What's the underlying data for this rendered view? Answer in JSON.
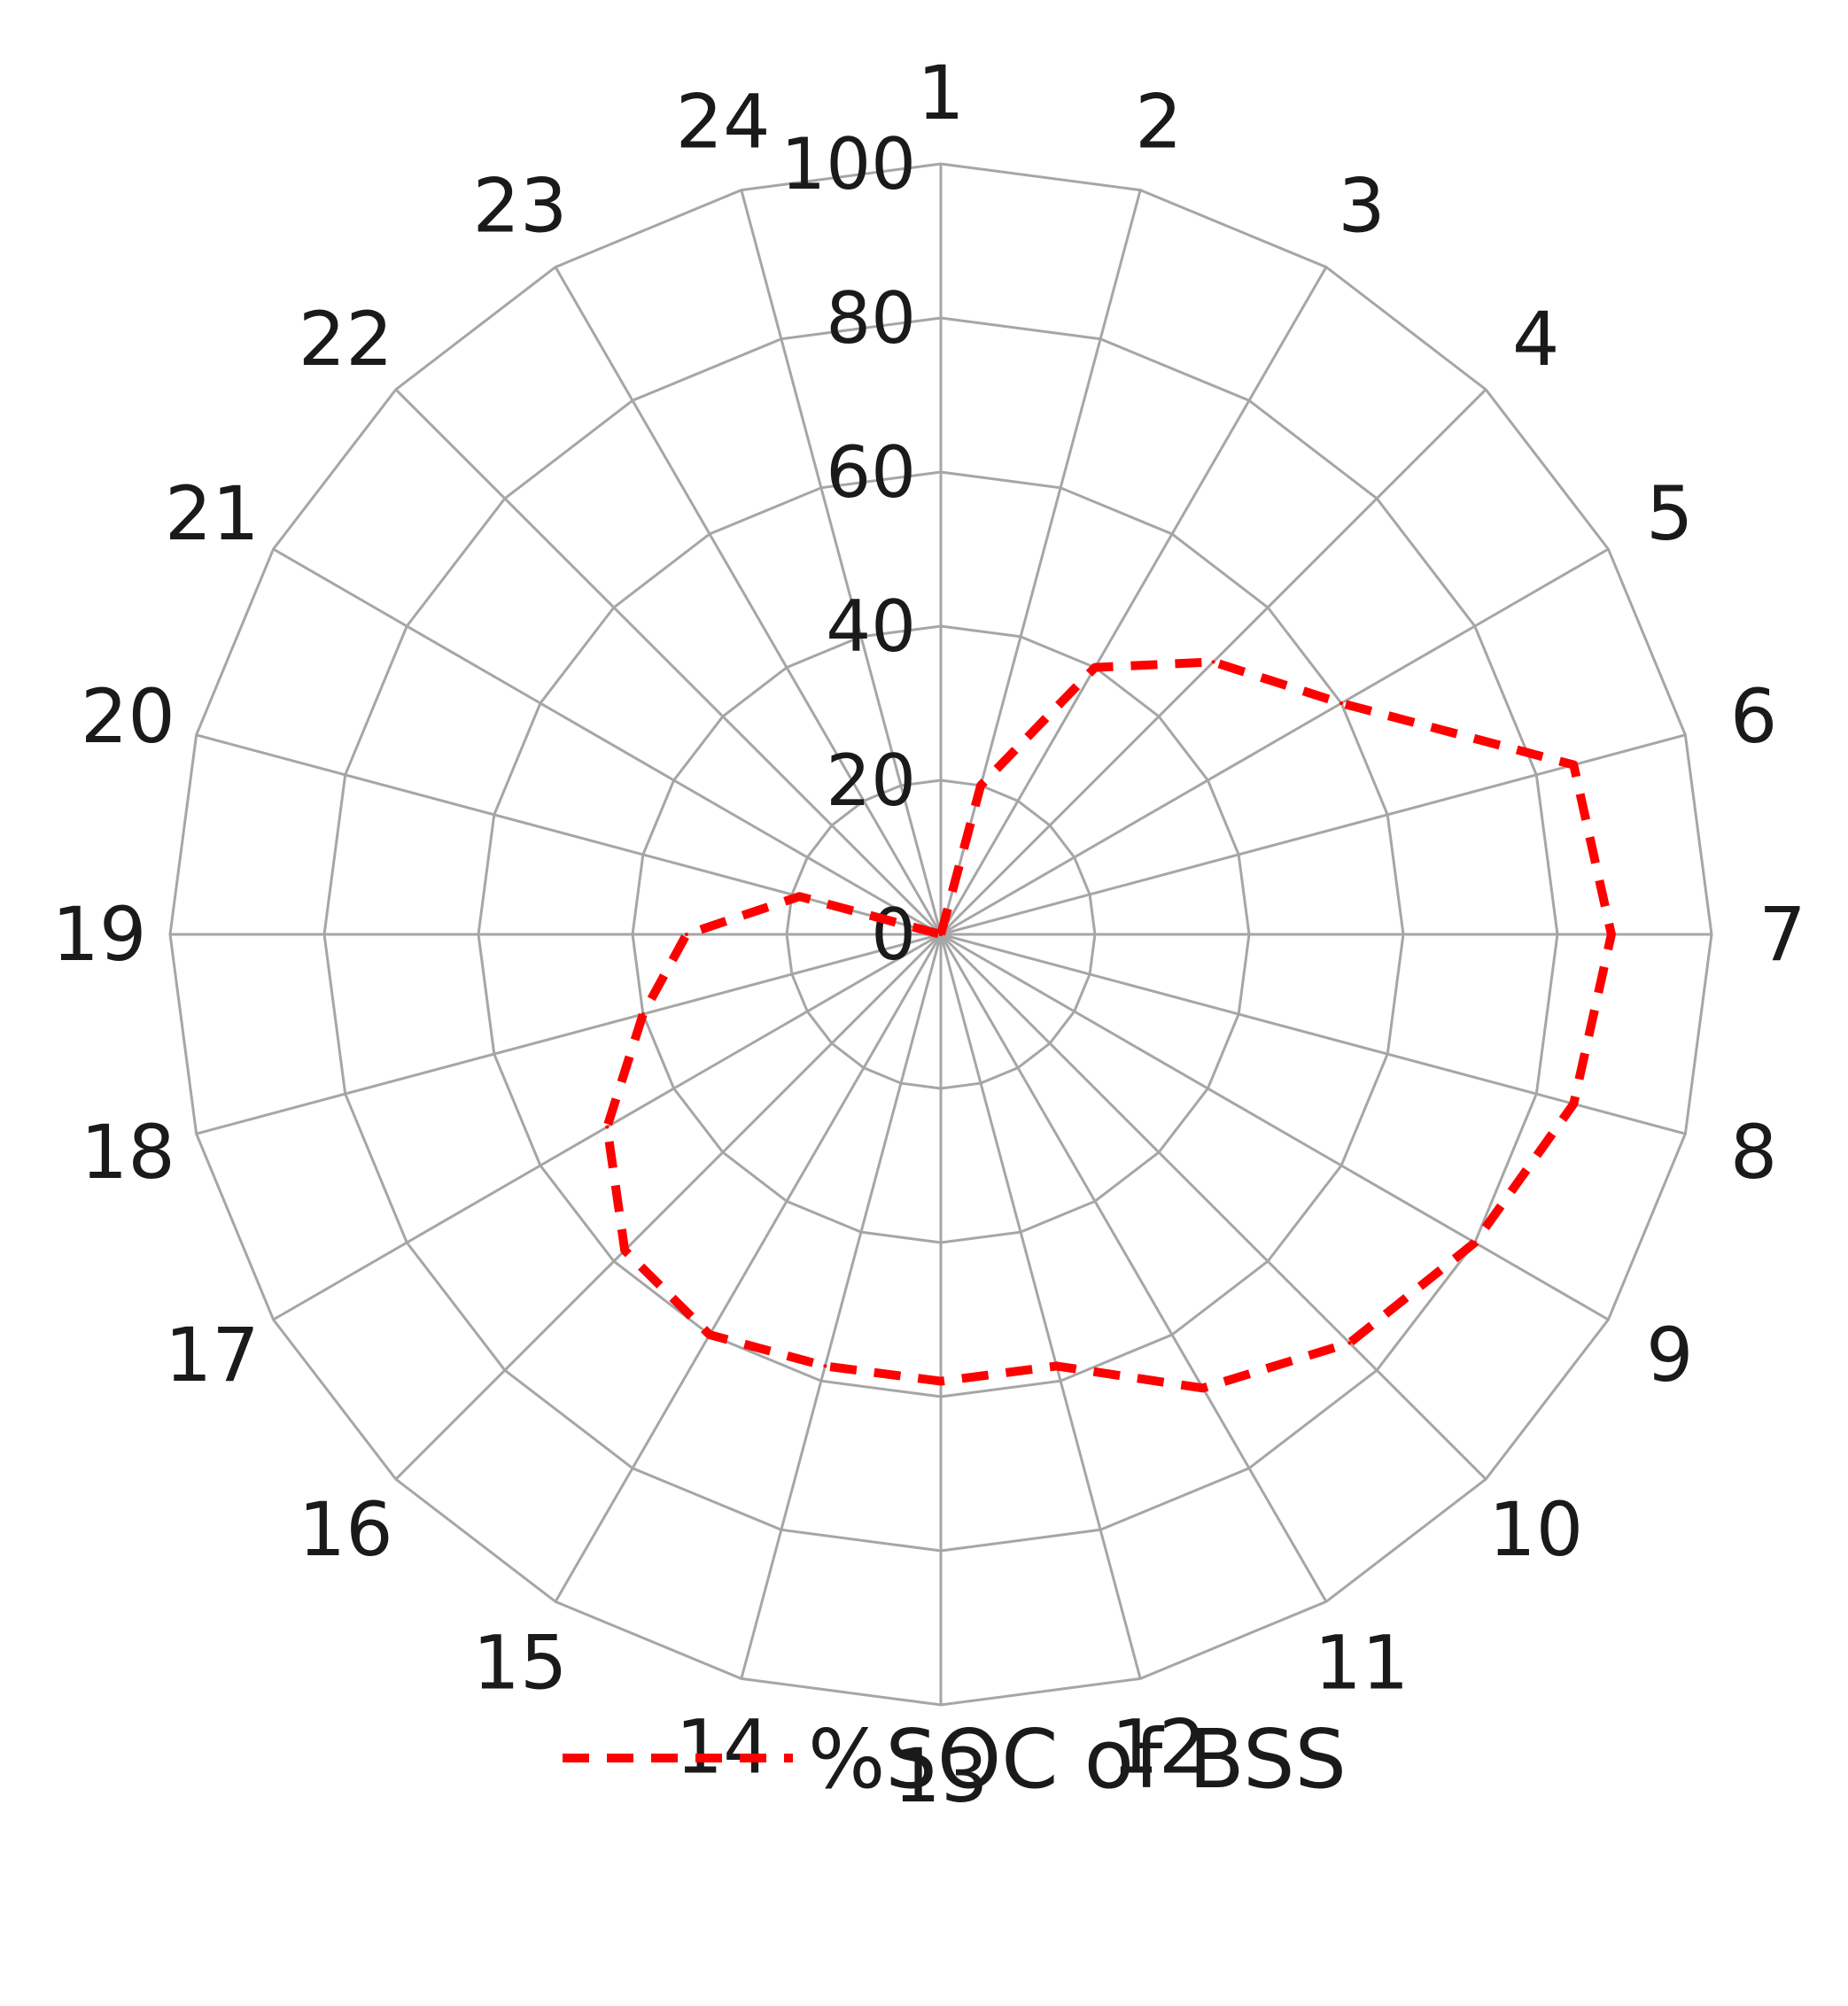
{
  "chart_data": {
    "type": "radar",
    "categories": [
      "1",
      "2",
      "3",
      "4",
      "5",
      "6",
      "7",
      "8",
      "9",
      "10",
      "11",
      "12",
      "13",
      "14",
      "15",
      "16",
      "17",
      "18",
      "19",
      "20",
      "21",
      "22",
      "23",
      "24"
    ],
    "series": [
      {
        "name": "%SOC of BSS",
        "color": "#ff0000",
        "line_style": "dashed",
        "values": [
          0,
          20,
          40,
          50,
          60,
          85,
          87,
          85,
          80,
          75,
          68,
          58,
          58,
          58,
          60,
          58,
          50,
          40,
          33,
          19,
          0,
          0,
          0,
          0
        ]
      }
    ],
    "rlim": [
      0,
      100
    ],
    "r_ticks": [
      "0",
      "20",
      "40",
      "60",
      "80",
      "100"
    ],
    "grid": true,
    "grid_color": "#a6a6a6",
    "legend": {
      "position": "bottom",
      "entries": [
        "%SOC of BSS"
      ]
    }
  }
}
